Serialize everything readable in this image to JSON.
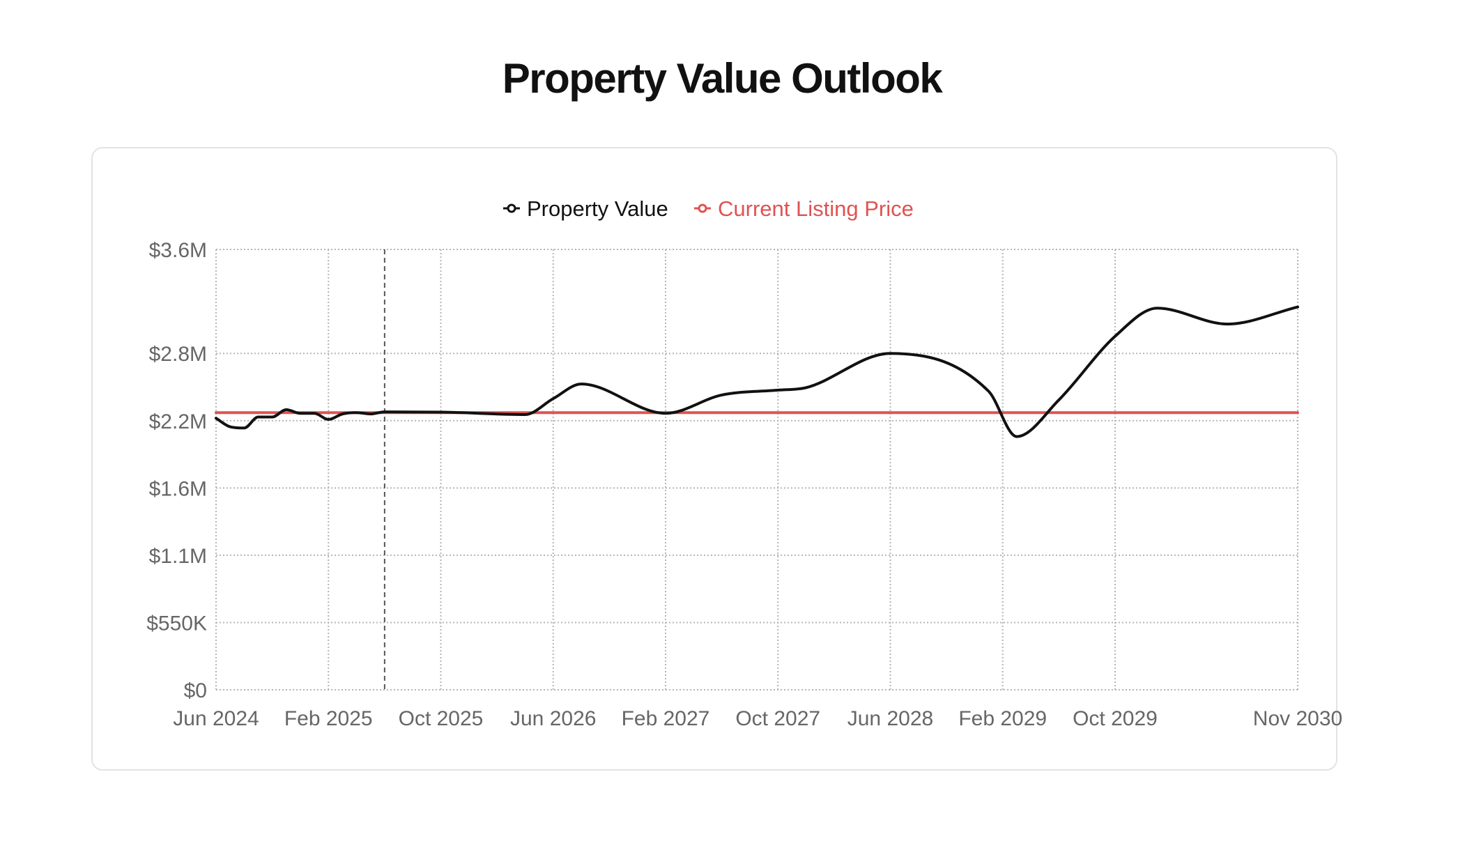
{
  "page": {
    "title": "Property Value Outlook"
  },
  "chart_data": {
    "type": "line",
    "title": "Property Value Outlook",
    "xlabel": "",
    "ylabel": "",
    "legend_position": "top-center",
    "grid": true,
    "x_axis": {
      "start": "2024-06",
      "end": "2030-11",
      "tick_labels": [
        "Jun 2024",
        "Feb 2025",
        "Oct 2025",
        "Jun 2026",
        "Feb 2027",
        "Oct 2027",
        "Jun 2028",
        "Feb 2029",
        "Oct 2029",
        "Nov 2030"
      ],
      "tick_months": [
        "2024-06",
        "2025-02",
        "2025-10",
        "2026-06",
        "2027-02",
        "2027-10",
        "2028-06",
        "2029-02",
        "2029-10",
        "2030-11"
      ]
    },
    "y_axis": {
      "ylim": [
        0,
        3600000
      ],
      "ticks": [
        0,
        550000,
        1100000,
        1650000,
        2200000,
        2750000,
        3600000
      ],
      "tick_labels": [
        "$0",
        "$550K",
        "$1.1M",
        "$1.6M",
        "$2.2M",
        "$2.8M",
        "$3.6M"
      ]
    },
    "marker_line": {
      "x": "2025-06",
      "style": "dashed",
      "color": "#555555"
    },
    "series": [
      {
        "name": "Property Value",
        "color": "#111111",
        "x": [
          "2024-06",
          "2024-07",
          "2024-08",
          "2024-09",
          "2024-10",
          "2024-11",
          "2024-12",
          "2025-01",
          "2025-02",
          "2025-03",
          "2025-04",
          "2025-05",
          "2025-06",
          "2025-10",
          "2026-04",
          "2026-06",
          "2026-08",
          "2027-02",
          "2027-06",
          "2027-10",
          "2027-12",
          "2028-06",
          "2029-01",
          "2029-03",
          "2029-06",
          "2029-10",
          "2030-01",
          "2030-06",
          "2030-11"
        ],
        "values": [
          2220000,
          2150000,
          2140000,
          2230000,
          2230000,
          2290000,
          2260000,
          2260000,
          2210000,
          2255000,
          2266000,
          2255000,
          2272000,
          2270000,
          2250000,
          2380000,
          2500000,
          2260000,
          2410000,
          2450000,
          2470000,
          2750000,
          2440000,
          2070000,
          2370000,
          2890000,
          3120000,
          2990000,
          3130000
        ]
      },
      {
        "name": "Current Listing Price",
        "color": "#e05252",
        "x": [
          "2024-06",
          "2030-11"
        ],
        "values": [
          2266000,
          2266000
        ]
      }
    ]
  }
}
